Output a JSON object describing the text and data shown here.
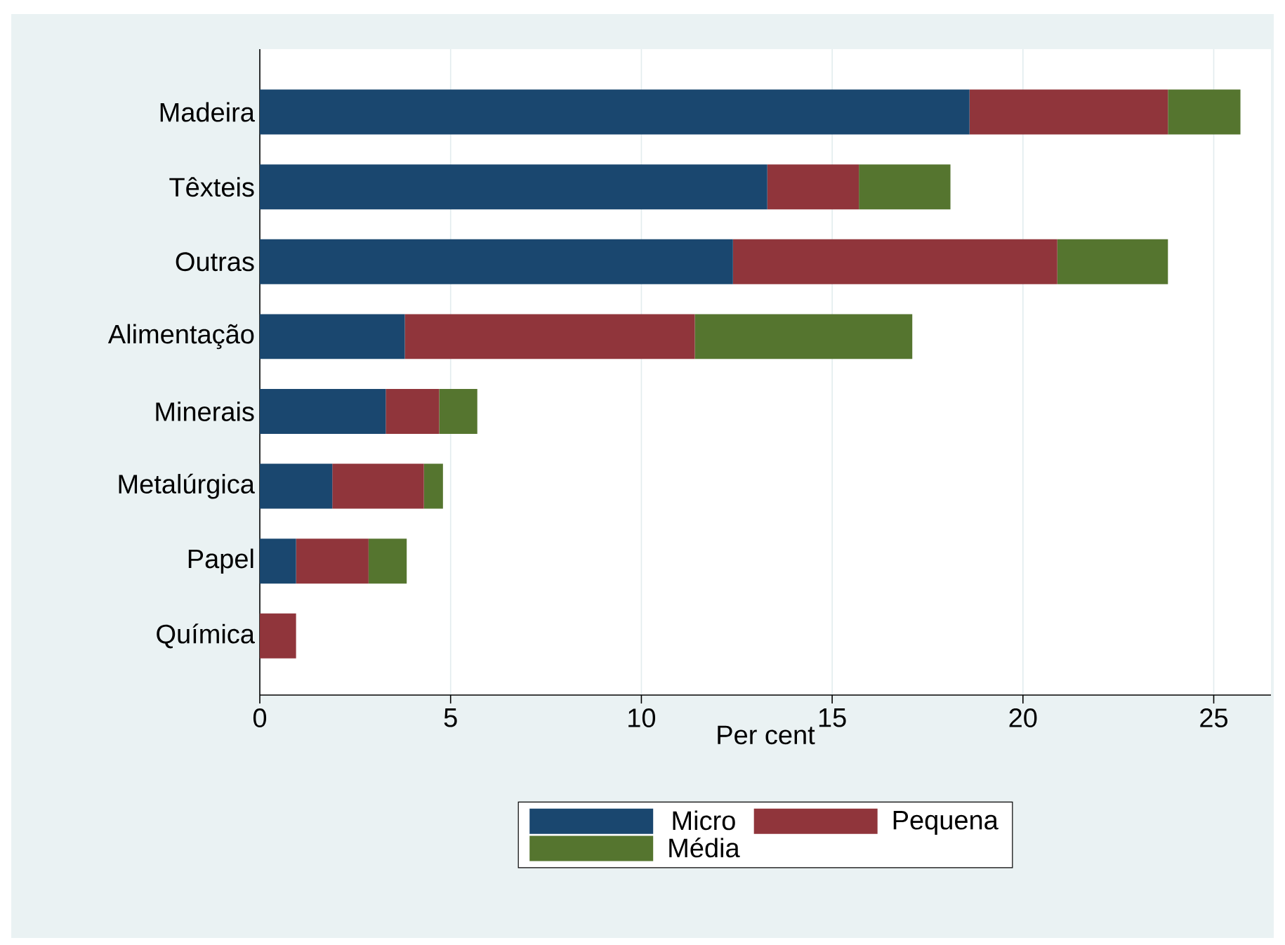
{
  "chart_data": {
    "type": "bar",
    "orientation": "horizontal",
    "stacked": true,
    "xlabel": "Per cent",
    "categories": [
      "Madeira",
      "Têxteis",
      "Outras",
      "Alimentação",
      "Minerais",
      "Metalúrgica",
      "Papel",
      "Química"
    ],
    "series": [
      {
        "name": "Micro",
        "color": "#1a476f",
        "values": [
          18.6,
          13.3,
          12.4,
          3.8,
          3.3,
          1.9,
          0.95,
          0
        ]
      },
      {
        "name": "Pequena",
        "color": "#90353b",
        "values": [
          5.2,
          2.4,
          8.5,
          7.6,
          1.4,
          2.4,
          1.9,
          0.95
        ]
      },
      {
        "name": "Média",
        "color": "#55752f",
        "values": [
          1.9,
          2.4,
          2.9,
          5.7,
          1.0,
          0.5,
          1.0,
          0
        ]
      }
    ],
    "xlim": [
      0,
      26.5
    ],
    "xticks": [
      0,
      5,
      10,
      15,
      20,
      25
    ],
    "grid": "x",
    "legend": "bottom"
  }
}
